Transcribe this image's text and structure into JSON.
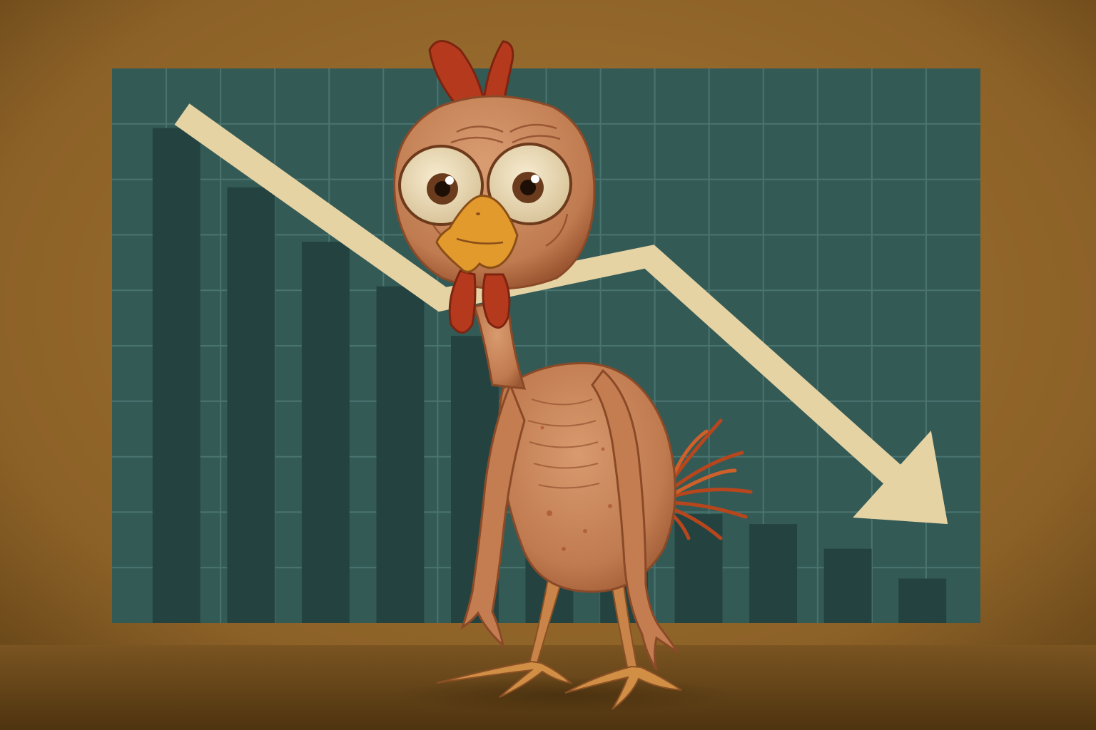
{
  "scene": {
    "description_free": true,
    "colors": {
      "wall_center": "#9a6e30",
      "wall_edge": "#5e3f14",
      "floor": "#6f4b1c",
      "board": "#345a56",
      "grid": "#4a7470",
      "bar": "#244340",
      "arrow": "#e6d3a3",
      "skin": "#c9835a",
      "skin_shade": "#9e5a35",
      "comb": "#b53a1d",
      "beak": "#e39a2c",
      "feather": "#c04a1e"
    }
  },
  "chart_data": {
    "type": "bar",
    "categories": [
      "",
      "",
      "",
      "",
      "",
      "",
      "",
      "",
      "",
      "",
      ""
    ],
    "values": [
      100,
      88,
      77,
      68,
      58,
      42,
      34,
      22,
      20,
      15,
      9
    ],
    "title": "",
    "xlabel": "",
    "ylabel": "",
    "ylim": [
      0,
      110
    ],
    "grid": true,
    "trend_arrow": {
      "direction": "down",
      "values": [
        96,
        51,
        72,
        2
      ]
    }
  }
}
